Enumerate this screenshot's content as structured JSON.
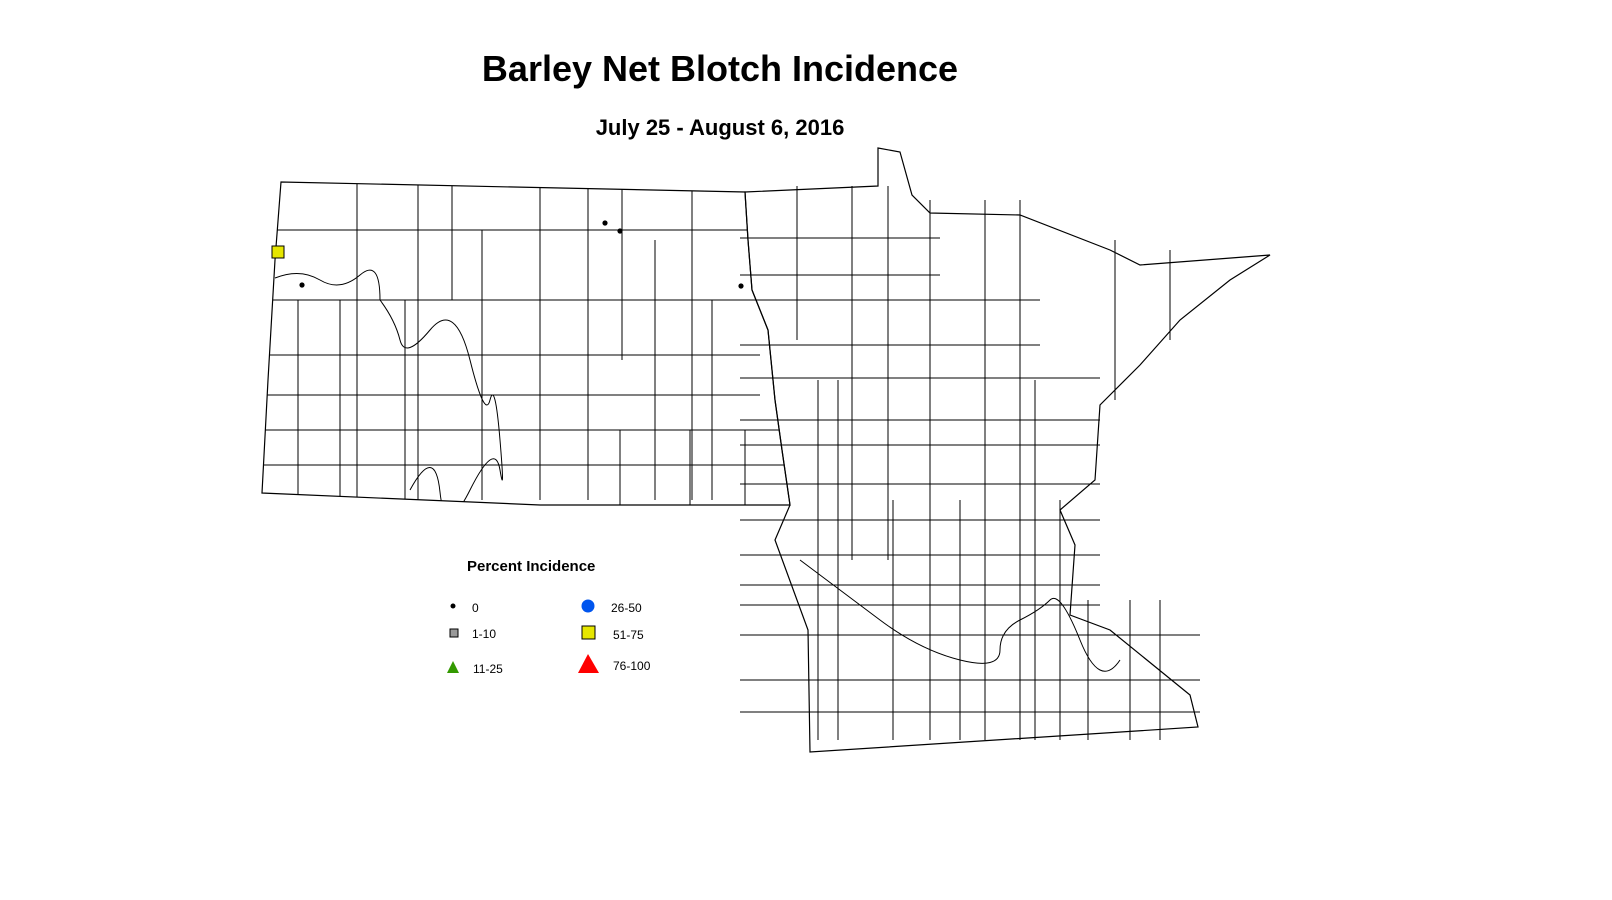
{
  "title": "Barley Net Blotch Incidence",
  "subtitle": "July 25 - August 6, 2016",
  "legend": {
    "title": "Percent Incidence",
    "items": [
      {
        "label": "0",
        "shape": "dot",
        "color": "#000000"
      },
      {
        "label": "1-10",
        "shape": "square",
        "color": "#999999"
      },
      {
        "label": "11-25",
        "shape": "triangle",
        "color": "#339900"
      },
      {
        "label": "26-50",
        "shape": "circle",
        "color": "#0055ee"
      },
      {
        "label": "51-75",
        "shape": "square",
        "color": "#e6e600"
      },
      {
        "label": "76-100",
        "shape": "triangle",
        "color": "#ff0000"
      }
    ]
  },
  "regions": [
    "North Dakota",
    "Minnesota"
  ],
  "observations": [
    {
      "category": "51-75",
      "location": "northwest North Dakota"
    },
    {
      "category": "0",
      "location": "northwest North Dakota"
    },
    {
      "category": "0",
      "location": "north-central North Dakota"
    },
    {
      "category": "0",
      "location": "north-central North Dakota"
    },
    {
      "category": "0",
      "location": "northeast North Dakota"
    }
  ]
}
